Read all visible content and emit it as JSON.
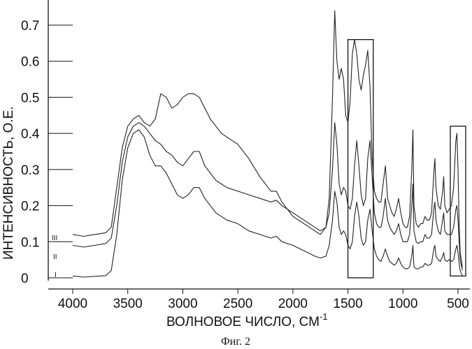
{
  "chart_data": {
    "type": "line",
    "title": "",
    "xlabel": "ВОЛНОВОЕ ЧИСЛО, СМ",
    "xlabel_sup": "-1",
    "ylabel": "ИНТЕНСИВНОСТЬ, О.Е.",
    "xlim": [
      4000,
      450
    ],
    "ylim": [
      0,
      0.75
    ],
    "x_ticks": [
      4000,
      3500,
      3000,
      2500,
      2000,
      1500,
      1000,
      500
    ],
    "x_tick_labels": [
      "4000",
      "3500",
      "3000",
      "2500",
      "2000",
      "1500",
      "1000",
      "500"
    ],
    "y_ticks": [
      0,
      0.1,
      0.2,
      0.3,
      0.4,
      0.5,
      0.6,
      0.7
    ],
    "y_tick_labels": [
      "0",
      "0.1",
      "0.2",
      "0.3",
      "0.4",
      "0.5",
      "0.6",
      "0.7"
    ],
    "grid": false,
    "series": [
      {
        "name": "I",
        "x": [
          4000,
          3900,
          3800,
          3700,
          3650,
          3600,
          3550,
          3500,
          3450,
          3400,
          3350,
          3300,
          3250,
          3200,
          3150,
          3100,
          3050,
          3000,
          2950,
          2900,
          2850,
          2800,
          2750,
          2700,
          2650,
          2600,
          2500,
          2400,
          2300,
          2200,
          2150,
          2100,
          2000,
          1900,
          1800,
          1750,
          1700,
          1670,
          1640,
          1620,
          1600,
          1580,
          1560,
          1540,
          1520,
          1500,
          1480,
          1460,
          1440,
          1420,
          1400,
          1380,
          1360,
          1340,
          1320,
          1300,
          1280,
          1260,
          1240,
          1220,
          1200,
          1180,
          1160,
          1140,
          1120,
          1100,
          1080,
          1060,
          1040,
          1020,
          1000,
          980,
          960,
          940,
          920,
          910,
          900,
          880,
          860,
          840,
          820,
          800,
          780,
          760,
          740,
          720,
          710,
          700,
          680,
          660,
          640,
          630,
          620,
          600,
          580,
          560,
          540,
          520,
          510,
          500,
          490,
          480,
          460
        ],
        "y": [
          0.005,
          0.002,
          0.004,
          0.006,
          0.02,
          0.12,
          0.27,
          0.36,
          0.4,
          0.41,
          0.39,
          0.34,
          0.31,
          0.31,
          0.29,
          0.26,
          0.23,
          0.22,
          0.23,
          0.25,
          0.25,
          0.22,
          0.2,
          0.18,
          0.17,
          0.16,
          0.15,
          0.13,
          0.12,
          0.11,
          0.115,
          0.1,
          0.09,
          0.075,
          0.06,
          0.055,
          0.06,
          0.09,
          0.16,
          0.24,
          0.21,
          0.14,
          0.12,
          0.13,
          0.12,
          0.09,
          0.08,
          0.1,
          0.17,
          0.21,
          0.17,
          0.11,
          0.09,
          0.1,
          0.16,
          0.19,
          0.13,
          0.08,
          0.06,
          0.05,
          0.045,
          0.06,
          0.08,
          0.06,
          0.045,
          0.04,
          0.035,
          0.04,
          0.055,
          0.04,
          0.03,
          0.025,
          0.025,
          0.03,
          0.06,
          0.09,
          0.03,
          0.025,
          0.025,
          0.03,
          0.03,
          0.04,
          0.035,
          0.035,
          0.04,
          0.08,
          0.09,
          0.06,
          0.05,
          0.045,
          0.06,
          0.07,
          0.05,
          0.045,
          0.05,
          0.045,
          0.05,
          0.08,
          0.09,
          0.07,
          0.04,
          0.02,
          0.005
        ]
      },
      {
        "name": "II",
        "x": [
          4000,
          3900,
          3800,
          3700,
          3650,
          3600,
          3550,
          3500,
          3450,
          3400,
          3350,
          3300,
          3250,
          3200,
          3150,
          3100,
          3050,
          3000,
          2950,
          2900,
          2850,
          2800,
          2750,
          2700,
          2650,
          2600,
          2500,
          2400,
          2300,
          2200,
          2150,
          2100,
          2000,
          1900,
          1800,
          1750,
          1700,
          1670,
          1640,
          1620,
          1600,
          1580,
          1560,
          1540,
          1520,
          1500,
          1480,
          1460,
          1440,
          1420,
          1400,
          1380,
          1360,
          1340,
          1320,
          1300,
          1280,
          1260,
          1240,
          1220,
          1200,
          1180,
          1160,
          1140,
          1120,
          1100,
          1080,
          1060,
          1040,
          1020,
          1000,
          980,
          960,
          940,
          920,
          910,
          900,
          880,
          860,
          840,
          820,
          800,
          780,
          760,
          740,
          720,
          710,
          700,
          680,
          660,
          640,
          630,
          620,
          600,
          580,
          560,
          540,
          520,
          510,
          500,
          490,
          480,
          460
        ],
        "y": [
          0.09,
          0.085,
          0.09,
          0.095,
          0.11,
          0.2,
          0.32,
          0.39,
          0.42,
          0.43,
          0.42,
          0.4,
          0.38,
          0.37,
          0.35,
          0.34,
          0.32,
          0.31,
          0.33,
          0.35,
          0.35,
          0.31,
          0.29,
          0.27,
          0.26,
          0.25,
          0.24,
          0.23,
          0.22,
          0.21,
          0.215,
          0.2,
          0.18,
          0.16,
          0.14,
          0.13,
          0.14,
          0.18,
          0.3,
          0.43,
          0.37,
          0.26,
          0.23,
          0.25,
          0.24,
          0.2,
          0.19,
          0.22,
          0.31,
          0.38,
          0.31,
          0.23,
          0.2,
          0.22,
          0.33,
          0.38,
          0.28,
          0.18,
          0.15,
          0.14,
          0.14,
          0.17,
          0.22,
          0.16,
          0.14,
          0.13,
          0.12,
          0.13,
          0.15,
          0.12,
          0.1,
          0.1,
          0.1,
          0.12,
          0.2,
          0.26,
          0.13,
          0.1,
          0.095,
          0.1,
          0.1,
          0.12,
          0.11,
          0.11,
          0.12,
          0.19,
          0.21,
          0.16,
          0.13,
          0.12,
          0.16,
          0.18,
          0.13,
          0.12,
          0.12,
          0.12,
          0.14,
          0.19,
          0.2,
          0.16,
          0.1,
          0.05,
          0.02
        ]
      },
      {
        "name": "III",
        "x": [
          4000,
          3900,
          3800,
          3700,
          3650,
          3600,
          3550,
          3500,
          3450,
          3400,
          3350,
          3300,
          3250,
          3200,
          3150,
          3100,
          3050,
          3000,
          2950,
          2900,
          2850,
          2800,
          2750,
          2700,
          2650,
          2600,
          2500,
          2400,
          2300,
          2200,
          2150,
          2100,
          2000,
          1900,
          1800,
          1750,
          1700,
          1670,
          1640,
          1620,
          1600,
          1580,
          1560,
          1540,
          1520,
          1500,
          1480,
          1460,
          1440,
          1420,
          1400,
          1380,
          1360,
          1340,
          1320,
          1300,
          1280,
          1260,
          1240,
          1220,
          1200,
          1180,
          1160,
          1140,
          1120,
          1100,
          1080,
          1060,
          1040,
          1020,
          1000,
          980,
          960,
          940,
          920,
          910,
          900,
          880,
          860,
          840,
          820,
          800,
          780,
          760,
          740,
          720,
          710,
          700,
          680,
          660,
          640,
          630,
          620,
          600,
          580,
          560,
          540,
          520,
          510,
          500,
          490,
          480,
          460
        ],
        "y": [
          0.12,
          0.115,
          0.12,
          0.125,
          0.14,
          0.25,
          0.36,
          0.42,
          0.44,
          0.45,
          0.43,
          0.42,
          0.44,
          0.51,
          0.5,
          0.47,
          0.48,
          0.5,
          0.51,
          0.51,
          0.5,
          0.47,
          0.44,
          0.42,
          0.4,
          0.39,
          0.37,
          0.33,
          0.28,
          0.24,
          0.24,
          0.21,
          0.17,
          0.15,
          0.13,
          0.12,
          0.14,
          0.22,
          0.5,
          0.74,
          0.6,
          0.55,
          0.58,
          0.55,
          0.45,
          0.43,
          0.49,
          0.62,
          0.66,
          0.62,
          0.55,
          0.52,
          0.56,
          0.59,
          0.63,
          0.53,
          0.33,
          0.24,
          0.22,
          0.21,
          0.21,
          0.26,
          0.31,
          0.22,
          0.2,
          0.18,
          0.17,
          0.19,
          0.22,
          0.18,
          0.15,
          0.14,
          0.14,
          0.17,
          0.3,
          0.41,
          0.2,
          0.15,
          0.14,
          0.15,
          0.15,
          0.17,
          0.16,
          0.16,
          0.18,
          0.29,
          0.33,
          0.25,
          0.2,
          0.19,
          0.24,
          0.28,
          0.2,
          0.18,
          0.19,
          0.2,
          0.25,
          0.38,
          0.4,
          0.3,
          0.15,
          0.07,
          0.03
        ]
      }
    ],
    "highlight_regions": [
      {
        "x_range": [
          1500,
          1270
        ],
        "y_range": [
          0,
          0.66
        ]
      },
      {
        "x_range": [
          570,
          430
        ],
        "y_range": [
          0.005,
          0.42
        ]
      }
    ]
  },
  "caption": "Фиг. 2"
}
